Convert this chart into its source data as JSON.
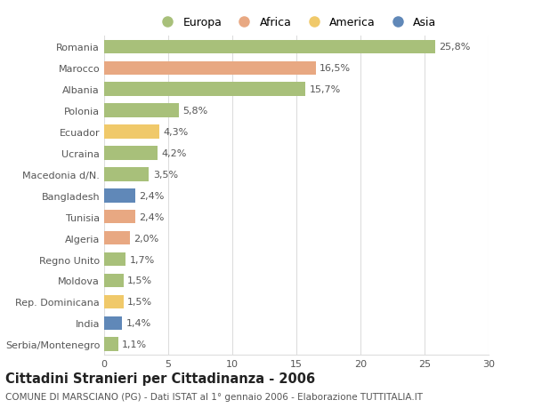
{
  "categories": [
    "Romania",
    "Marocco",
    "Albania",
    "Polonia",
    "Ecuador",
    "Ucraina",
    "Macedonia d/N.",
    "Bangladesh",
    "Tunisia",
    "Algeria",
    "Regno Unito",
    "Moldova",
    "Rep. Dominicana",
    "India",
    "Serbia/Montenegro"
  ],
  "values": [
    25.8,
    16.5,
    15.7,
    5.8,
    4.3,
    4.2,
    3.5,
    2.4,
    2.4,
    2.0,
    1.7,
    1.5,
    1.5,
    1.4,
    1.1
  ],
  "labels": [
    "25,8%",
    "16,5%",
    "15,7%",
    "5,8%",
    "4,3%",
    "4,2%",
    "3,5%",
    "2,4%",
    "2,4%",
    "2,0%",
    "1,7%",
    "1,5%",
    "1,5%",
    "1,4%",
    "1,1%"
  ],
  "colors": [
    "#a8c07a",
    "#e8a882",
    "#a8c07a",
    "#a8c07a",
    "#f0c96a",
    "#a8c07a",
    "#a8c07a",
    "#6088b8",
    "#e8a882",
    "#e8a882",
    "#a8c07a",
    "#a8c07a",
    "#f0c96a",
    "#6088b8",
    "#a8c07a"
  ],
  "legend_labels": [
    "Europa",
    "Africa",
    "America",
    "Asia"
  ],
  "legend_colors": [
    "#a8c07a",
    "#e8a882",
    "#f0c96a",
    "#6088b8"
  ],
  "title": "Cittadini Stranieri per Cittadinanza - 2006",
  "subtitle": "COMUNE DI MARSCIANO (PG) - Dati ISTAT al 1° gennaio 2006 - Elaborazione TUTTITALIA.IT",
  "xlim": [
    0,
    30
  ],
  "xticks": [
    0,
    5,
    10,
    15,
    20,
    25,
    30
  ],
  "background_color": "#ffffff",
  "grid_color": "#dddddd",
  "bar_height": 0.65,
  "label_fontsize": 8.0,
  "tick_fontsize": 8.0,
  "title_fontsize": 10.5,
  "subtitle_fontsize": 7.5
}
